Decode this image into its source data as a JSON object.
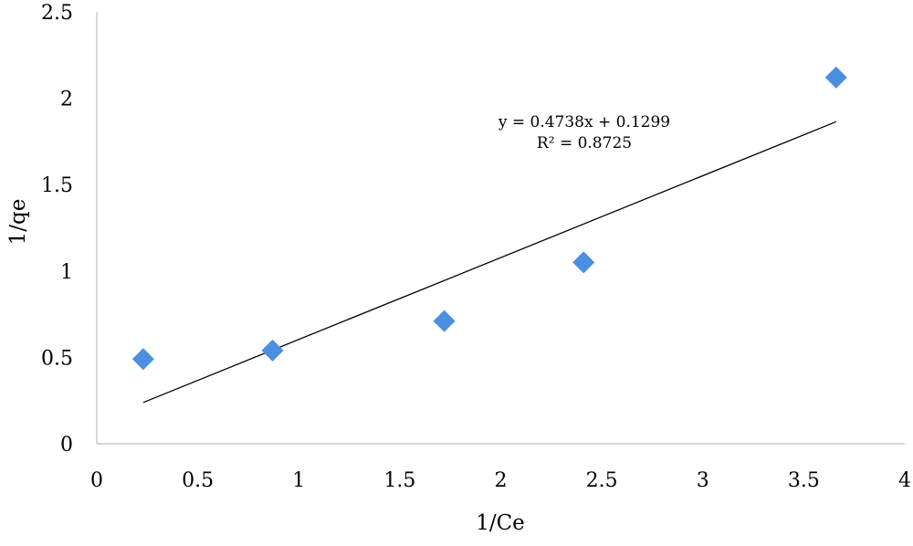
{
  "chart_data": {
    "type": "scatter",
    "title": "",
    "xlabel": "1/Ce",
    "ylabel": "1/qe",
    "xlim": [
      0,
      4
    ],
    "ylim": [
      0,
      2.5
    ],
    "x_ticks": [
      0,
      0.5,
      1,
      1.5,
      2,
      2.5,
      3,
      3.5,
      4
    ],
    "y_ticks": [
      0,
      0.5,
      1,
      1.5,
      2,
      2.5
    ],
    "x_tick_labels": [
      "0",
      "0.5",
      "1",
      "1.5",
      "2",
      "2.5",
      "3",
      "3.5",
      "4"
    ],
    "y_tick_labels": [
      "0",
      "0.5",
      "1",
      "1.5",
      "2",
      "2.5"
    ],
    "grid": false,
    "legend": "none",
    "marker": "diamond",
    "marker_color": "#4a8fe0",
    "line_color": "#000000",
    "series": [
      {
        "x": [
          0.23,
          0.87,
          1.72,
          2.41,
          3.66
        ],
        "y": [
          0.49,
          0.54,
          0.71,
          1.05,
          2.12
        ]
      }
    ],
    "trendline": {
      "slope": 0.4738,
      "intercept": 0.1299,
      "x_range": [
        0.23,
        3.66
      ]
    },
    "equation": "y = 0.4738x + 0.1299",
    "r_squared": "R² = 0.8725"
  }
}
